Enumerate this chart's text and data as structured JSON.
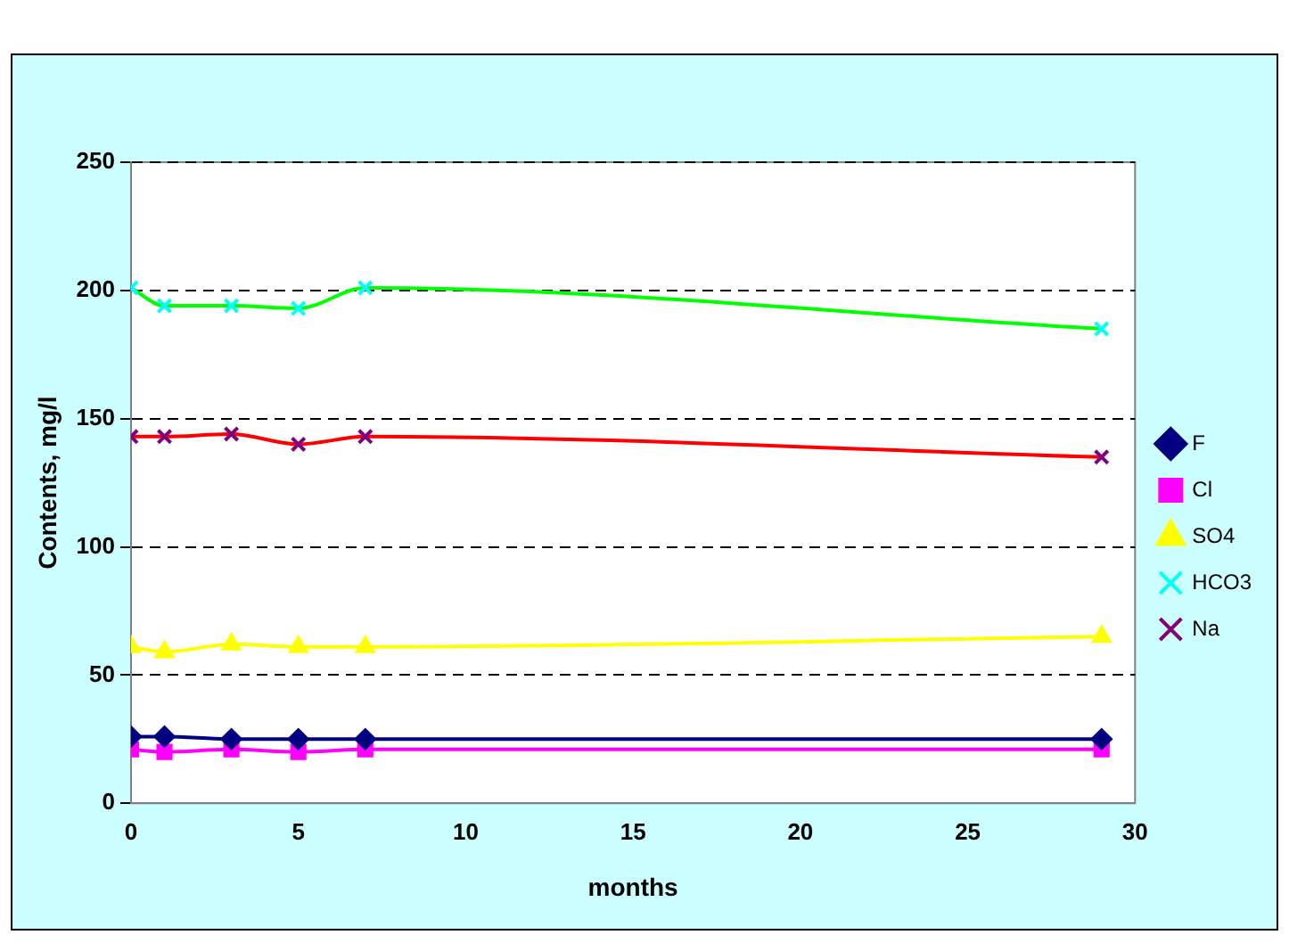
{
  "chart_data": {
    "type": "line",
    "xlabel": "months",
    "ylabel": "Contents, mg/l",
    "x": [
      0,
      1,
      3,
      5,
      7,
      29
    ],
    "xlim": [
      0,
      30
    ],
    "xticks": [
      0,
      5,
      10,
      15,
      20,
      25,
      30
    ],
    "ylim": [
      0,
      250
    ],
    "yticks": [
      0,
      50,
      100,
      150,
      200,
      250
    ],
    "grid": "y",
    "legend": "right",
    "series": [
      {
        "name": "F",
        "color": "#000080",
        "marker": "diamond",
        "values": [
          26,
          26,
          25,
          25,
          25,
          25
        ]
      },
      {
        "name": "Cl",
        "color": "#ff00ff",
        "marker": "square",
        "values": [
          21,
          20,
          21,
          20,
          21,
          21
        ]
      },
      {
        "name": "SO4",
        "color": "#ffff00",
        "marker": "triangle",
        "values": [
          61,
          59,
          62,
          61,
          61,
          65
        ]
      },
      {
        "name": "HCO3",
        "color": "#00ff00",
        "colors": [
          "#00ffff",
          "#00ffff",
          "#00ffff",
          "#00ffff",
          "#00ffff",
          "#00ffff"
        ],
        "marker": "cross",
        "values": [
          201,
          194,
          194,
          193,
          201,
          185
        ]
      },
      {
        "name": "Na",
        "color": "#ff0000",
        "colors": [
          "#800080",
          "#800080",
          "#800080",
          "#800080",
          "#800080",
          "#800080"
        ],
        "marker": "cross",
        "values": [
          143,
          143,
          144,
          140,
          143,
          135
        ]
      }
    ]
  }
}
